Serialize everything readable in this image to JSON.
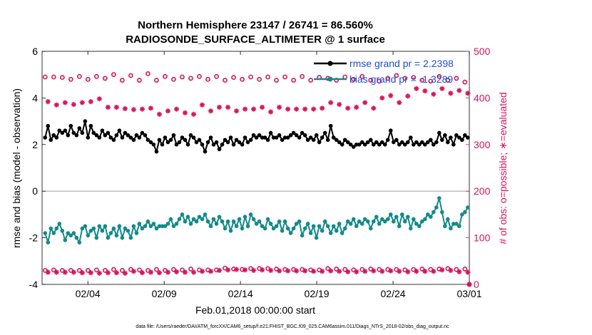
{
  "chart_data": {
    "type": "line",
    "title_line1": "Northern Hemisphere 23147 / 26741 = 86.560%",
    "title_line2": "RADIOSONDE_SURFACE_ALTIMETER @ 1 surface",
    "xlabel": "Feb.01,2018 00:00:00 start",
    "ylabel_left": "rmse and bias (model - observation)",
    "ylabel_right": "# of obs: o=possible; ∗=evaluated",
    "ylim_left": [
      -4,
      6
    ],
    "ylim_right": [
      0,
      500
    ],
    "xlim_days": [
      0,
      28
    ],
    "x_ticks": [
      {
        "day": 3,
        "label": "02/04"
      },
      {
        "day": 8,
        "label": "02/09"
      },
      {
        "day": 13,
        "label": "02/14"
      },
      {
        "day": 18,
        "label": "02/19"
      },
      {
        "day": 23,
        "label": "02/24"
      },
      {
        "day": 28,
        "label": "03/01"
      }
    ],
    "y_ticks_left": [
      "-4",
      "-2",
      "0",
      "2",
      "4",
      "6"
    ],
    "y_ticks_right": [
      "0",
      "100",
      "200",
      "300",
      "400",
      "500"
    ],
    "footer": "data file: /Users/raeder/DAI/ATM_forcXX/CAM6_setup/f.e21.FHIST_BGC.f09_025.CAM6assim.011/Diags_NTrS_2018-02/obs_diag_output.nc",
    "colors": {
      "rmse": "#000000",
      "bias": "#138a8a",
      "counts": "#d6155b",
      "legend_text": "#1f4fd6",
      "zero_line": "#aaaaaa"
    },
    "legend": [
      {
        "label": "rmse grand pr = 2.2398",
        "series": "rmse"
      },
      {
        "label": "bias grand pr = -1.3289",
        "series": "bias"
      }
    ],
    "series": [
      {
        "name": "rmse",
        "axis": "left",
        "values": [
          2.3,
          2.8,
          2.2,
          2.4,
          2.3,
          2.6,
          2.5,
          2.6,
          2.4,
          2.8,
          2.5,
          2.4,
          2.7,
          2.5,
          3.0,
          2.3,
          2.8,
          2.5,
          2.4,
          2.3,
          2.6,
          2.4,
          2.5,
          2.3,
          2.2,
          2.4,
          2.6,
          2.3,
          2.5,
          2.4,
          2.3,
          2.2,
          2.4,
          2.3,
          2.5,
          2.4,
          2.2,
          2.1,
          2.0,
          1.7,
          2.2,
          2.0,
          2.3,
          2.1,
          2.2,
          2.4,
          2.0,
          2.1,
          2.3,
          2.2,
          2.0,
          2.4,
          2.3,
          2.1,
          2.2,
          2.0,
          1.7,
          2.1,
          2.3,
          2.0,
          2.1,
          1.8,
          2.0,
          2.2,
          2.1,
          2.3,
          2.0,
          2.2,
          2.1,
          2.0,
          2.3,
          2.1,
          2.2,
          2.4,
          2.3,
          2.4,
          2.3,
          2.3,
          2.2,
          2.5,
          2.3,
          2.3,
          2.4,
          2.2,
          2.3,
          2.3,
          2.4,
          2.5,
          2.4,
          2.3,
          2.5,
          2.4,
          2.2,
          2.3,
          2.2,
          2.4,
          2.1,
          2.3,
          2.5,
          2.2,
          2.8,
          2.3,
          2.2,
          2.1,
          2.0,
          2.2,
          2.1,
          2.0,
          1.9,
          2.0,
          2.0,
          2.1,
          2.0,
          2.1,
          2.2,
          2.0,
          2.1,
          2.0,
          2.1,
          2.0,
          2.2,
          2.6,
          2.1,
          2.2,
          2.0,
          2.1,
          2.0,
          2.1,
          2.3,
          2.0,
          2.1,
          2.0,
          2.1,
          2.0,
          2.1,
          2.2,
          2.0,
          2.1,
          2.5,
          2.2,
          2.4,
          2.1,
          2.3,
          2.0,
          2.4,
          2.3,
          2.2,
          2.4,
          2.3
        ]
      },
      {
        "name": "bias",
        "axis": "left",
        "values": [
          -1.8,
          -2.2,
          -1.6,
          -1.8,
          -1.6,
          -1.4,
          -1.7,
          -2.1,
          -1.8,
          -1.9,
          -1.8,
          -2.0,
          -2.2,
          -1.6,
          -1.5,
          -1.9,
          -1.7,
          -1.6,
          -2.0,
          -1.5,
          -1.7,
          -1.5,
          -2.0,
          -1.8,
          -1.6,
          -1.9,
          -1.5,
          -2.0,
          -1.6,
          -1.7,
          -2.0,
          -1.5,
          -1.8,
          -1.4,
          -1.6,
          -1.5,
          -1.3,
          -1.5,
          -1.4,
          -1.6,
          -1.5,
          -1.5,
          -1.5,
          -1.4,
          -1.2,
          -1.5,
          -1.4,
          -1.2,
          -1.0,
          -1.3,
          -1.1,
          -1.4,
          -1.2,
          -1.3,
          -1.1,
          -1.2,
          -1.0,
          -1.3,
          -1.5,
          -1.2,
          -1.4,
          -1.1,
          -1.3,
          -1.6,
          -1.3,
          -1.7,
          -1.3,
          -1.5,
          -1.2,
          -1.6,
          -1.1,
          -1.5,
          -1.0,
          -1.2,
          -1.4,
          -1.3,
          -1.5,
          -1.6,
          -1.2,
          -1.4,
          -1.6,
          -1.5,
          -1.3,
          -1.7,
          -1.3,
          -1.6,
          -1.8,
          -1.6,
          -1.4,
          -1.3,
          -1.9,
          -1.6,
          -1.4,
          -1.8,
          -1.5,
          -2.0,
          -1.5,
          -1.7,
          -1.3,
          -1.5,
          -1.8,
          -1.5,
          -1.7,
          -1.4,
          -1.8,
          -1.6,
          -1.3,
          -1.4,
          -1.2,
          -1.5,
          -1.3,
          -1.4,
          -1.2,
          -1.3,
          -1.6,
          -1.3,
          -1.1,
          -1.4,
          -1.2,
          -1.3,
          -1.2,
          -1.0,
          -1.3,
          -1.1,
          -1.5,
          -1.0,
          -1.3,
          -1.1,
          -1.6,
          -1.2,
          -1.4,
          -1.5,
          -1.3,
          -1.2,
          -1.0,
          -1.1,
          -0.9,
          -0.7,
          -0.3,
          -0.9,
          -1.5,
          -1.2,
          -1.6,
          -1.4,
          -1.4,
          -1.5,
          -1.0,
          -0.9,
          -0.7
        ]
      },
      {
        "name": "obs_possible",
        "axis": "right",
        "values": [
          445,
          440,
          442,
          445,
          438,
          442,
          444,
          440,
          448,
          440,
          442,
          438,
          446,
          440,
          444,
          440,
          442,
          438,
          446,
          440,
          448,
          442,
          445,
          438,
          450,
          440,
          446,
          438,
          446,
          440,
          448,
          442,
          446,
          438,
          448,
          440,
          452,
          442,
          446,
          438,
          448,
          440,
          446,
          442,
          444,
          440,
          448,
          440,
          445,
          438,
          446,
          442,
          448,
          440,
          446,
          438,
          445,
          440,
          448,
          442,
          446,
          440,
          448,
          438,
          446,
          442,
          444,
          440,
          448,
          440,
          446,
          442,
          445,
          438,
          446,
          440,
          448,
          442,
          445,
          440,
          446,
          438,
          448,
          442,
          445,
          440,
          446,
          438,
          444,
          440,
          446,
          442,
          440,
          438,
          446,
          440,
          444,
          438,
          440,
          442,
          446,
          440,
          438,
          444,
          440,
          445,
          442,
          446,
          440,
          448,
          442,
          446,
          440,
          444,
          438,
          440,
          442,
          436,
          440,
          445,
          442,
          446,
          440,
          448,
          444,
          440,
          442,
          446,
          438,
          444,
          440,
          446,
          438,
          442,
          440,
          436,
          440,
          438,
          446,
          442,
          444,
          438,
          440,
          446,
          442,
          436,
          440,
          434,
          438
        ]
      },
      {
        "name": "obs_evaluated",
        "axis": "right",
        "values": [
          390,
          392,
          394,
          396,
          385,
          395,
          398,
          390,
          375,
          392,
          386,
          395,
          398,
          390,
          386,
          394,
          392,
          388,
          395,
          398,
          390,
          385,
          380,
          375,
          378,
          380,
          375,
          376,
          377,
          378,
          380,
          375,
          378,
          374,
          376,
          378,
          376,
          378,
          376,
          370,
          365,
          385,
          380,
          372,
          365,
          370,
          376,
          378,
          372,
          368,
          375,
          370,
          365,
          376,
          380,
          385,
          378,
          376,
          372,
          376,
          375,
          380,
          378,
          374,
          380,
          376,
          378,
          372,
          376,
          380,
          376,
          374,
          378,
          376,
          374,
          376,
          380,
          378,
          374,
          370,
          376,
          378,
          380,
          385,
          380,
          376,
          378,
          380,
          376,
          378,
          374,
          376,
          380,
          382,
          376,
          372,
          384,
          378,
          380,
          376,
          390,
          394,
          388,
          386,
          378,
          370,
          378,
          380,
          385,
          380,
          376,
          372,
          390,
          380,
          376,
          378,
          385,
          376,
          400,
          398,
          394,
          405,
          410,
          412,
          390,
          400,
          410,
          404,
          395,
          415,
          420,
          408,
          405,
          415,
          418,
          410,
          408,
          400,
          415,
          420,
          412,
          408,
          410,
          415,
          412,
          416,
          408,
          405,
          410
        ]
      },
      {
        "name": "obs_possible_low",
        "axis": "right",
        "values": [
          30,
          30,
          29,
          31,
          30,
          31,
          30,
          29,
          31,
          30,
          31,
          30,
          30,
          31,
          29,
          30,
          31,
          30,
          31,
          30,
          29,
          30,
          31,
          30,
          32,
          30,
          31,
          30,
          31,
          30,
          32,
          31,
          30,
          31,
          30,
          32,
          30,
          31,
          30,
          32,
          30,
          31,
          30,
          31,
          30,
          32,
          31,
          30,
          31,
          30,
          32,
          33,
          31,
          30,
          31,
          30,
          32,
          31,
          33,
          32,
          31,
          33,
          34,
          35,
          33,
          32,
          33,
          34,
          33,
          32,
          34,
          33,
          34,
          32,
          33,
          34,
          33,
          32,
          34,
          33,
          32,
          33,
          34,
          33,
          32,
          33,
          34,
          32,
          33,
          31,
          32,
          33,
          32,
          31,
          32,
          33,
          31,
          32,
          33,
          34,
          33,
          32,
          33,
          32,
          31,
          32,
          33,
          32,
          31,
          32,
          33,
          32,
          31,
          32,
          33,
          32,
          31,
          32,
          33,
          31,
          32,
          33,
          31,
          32,
          33,
          32,
          31,
          32,
          33,
          32,
          31,
          32,
          33,
          34,
          33,
          32,
          31,
          32,
          33,
          32,
          33,
          34,
          32,
          33,
          32,
          31,
          32,
          33,
          32
        ]
      },
      {
        "name": "obs_evaluated_low",
        "axis": "right",
        "values": [
          25,
          26,
          24,
          25,
          26,
          24,
          25,
          26,
          25,
          24,
          26,
          25,
          24,
          25,
          26,
          24,
          25,
          26,
          25,
          24,
          25,
          26,
          25,
          24,
          23,
          25,
          26,
          25,
          24,
          25,
          26,
          28,
          27,
          26,
          25,
          24,
          25,
          26,
          27,
          28,
          25,
          26,
          27,
          26,
          25,
          26,
          27,
          28,
          27,
          26,
          28,
          27,
          26,
          25,
          27,
          28,
          30,
          29,
          28,
          27,
          29,
          30,
          31,
          32,
          31,
          30,
          31,
          32,
          31,
          30,
          31,
          32,
          31,
          30,
          29,
          30,
          31,
          30,
          29,
          30,
          31,
          30,
          29,
          30,
          31,
          29,
          30,
          28,
          29,
          30,
          28,
          29,
          30,
          29,
          28,
          29,
          27,
          28,
          29,
          30,
          29,
          28,
          27,
          28,
          29,
          28,
          27,
          28,
          29,
          27,
          28,
          29,
          28,
          27,
          28,
          29,
          28,
          27,
          28,
          27,
          28,
          29,
          28,
          27,
          28,
          29,
          28,
          27,
          29,
          30,
          28,
          29,
          27,
          28,
          29,
          30,
          28,
          29,
          30,
          31,
          29,
          28,
          30,
          29,
          28,
          27,
          29,
          28,
          26
        ]
      }
    ]
  }
}
